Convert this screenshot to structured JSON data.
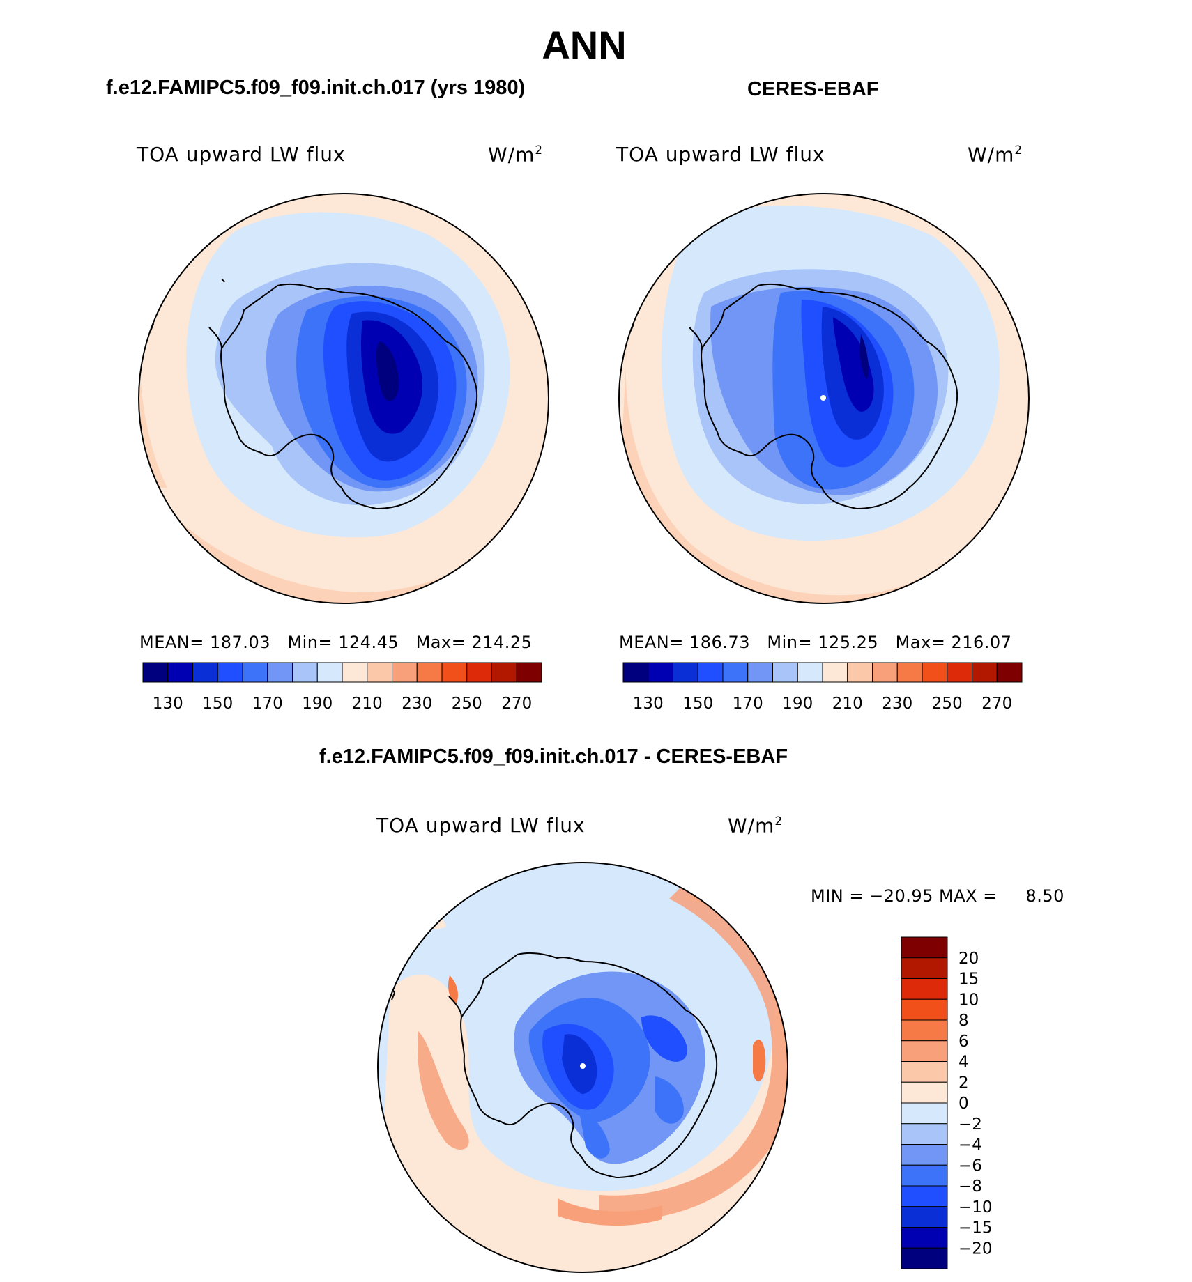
{
  "main_title": "ANN",
  "panels": [
    {
      "case_title": "f.e12.FAMIPC5.f09_f09.init.ch.017 (yrs 1980)",
      "field": "TOA upward LW flux",
      "units": "W/m",
      "units_sup": "2",
      "mean_label": "MEAN=",
      "mean": "187.03",
      "min_label": "Min=",
      "min": "124.45",
      "max_label": "Max=",
      "max": "214.25"
    },
    {
      "case_title": "CERES-EBAF",
      "field": "TOA upward LW flux",
      "units": "W/m",
      "units_sup": "2",
      "mean_label": "MEAN=",
      "mean": "186.73",
      "min_label": "Min=",
      "min": "125.25",
      "max_label": "Max=",
      "max": "216.07"
    }
  ],
  "diff": {
    "case_title": "f.e12.FAMIPC5.f09_f09.init.ch.017 - CERES-EBAF",
    "field": "TOA upward LW flux",
    "units": "W/m",
    "units_sup": "2",
    "minmax": "MIN = −20.95 MAX =     8.50"
  },
  "abs_colorbar": {
    "colors": [
      "#00007f",
      "#0000b2",
      "#0a2fd6",
      "#1f4fff",
      "#3c73f8",
      "#7196f5",
      "#a8c4f8",
      "#d6e8fb",
      "#fde8d8",
      "#fbc8aa",
      "#f7a07a",
      "#f57a45",
      "#f2501a",
      "#dd2a08",
      "#b21800",
      "#7f0000"
    ],
    "labels": [
      "130",
      "150",
      "170",
      "190",
      "210",
      "230",
      "250",
      "270"
    ]
  },
  "diff_colorbar": {
    "colors": [
      "#7f0000",
      "#b21800",
      "#dd2a08",
      "#f2501a",
      "#f57a45",
      "#f7a07a",
      "#fbc8aa",
      "#fde8d8",
      "#d6e8fb",
      "#a8c4f8",
      "#7196f5",
      "#3c73f8",
      "#1f4fff",
      "#0a2fd6",
      "#0000b2",
      "#00007f"
    ],
    "labels": [
      "20",
      "15",
      "10",
      "8",
      "6",
      "4",
      "2",
      "0",
      "−2",
      "−4",
      "−6",
      "−8",
      "−10",
      "−15",
      "−20"
    ]
  }
}
